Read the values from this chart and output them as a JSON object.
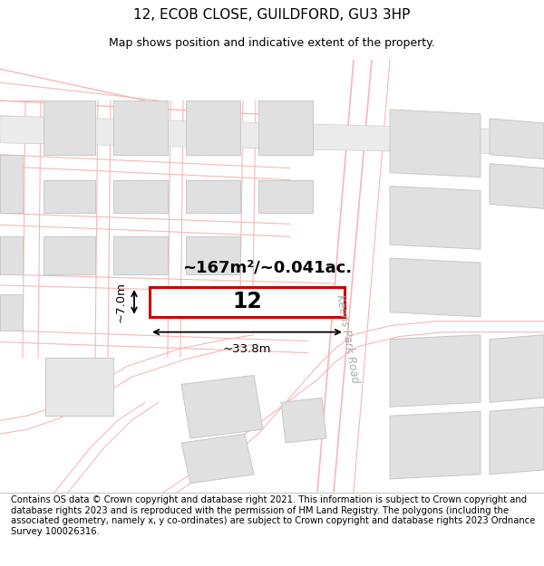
{
  "title": "12, ECOB CLOSE, GUILDFORD, GU3 3HP",
  "subtitle": "Map shows position and indicative extent of the property.",
  "footer": "Contains OS data © Crown copyright and database right 2021. This information is subject to Crown copyright and database rights 2023 and is reproduced with the permission of HM Land Registry. The polygons (including the associated geometry, namely x, y co-ordinates) are subject to Crown copyright and database rights 2023 Ordnance Survey 100026316.",
  "bg_color": "#ffffff",
  "map_bg": "#ffffff",
  "road_color": "#f5b8b8",
  "road_color2": "#e8a0a0",
  "building_fill": "#e0e0e0",
  "building_edge": "#c8c8c8",
  "title_fontsize": 11,
  "subtitle_fontsize": 9,
  "footer_fontsize": 7.2,
  "area_label": "~167m²/~0.041ac.",
  "dim_width_label": "~33.8m",
  "dim_height_label": "~7.0m",
  "road_label": "Keens Park Road"
}
